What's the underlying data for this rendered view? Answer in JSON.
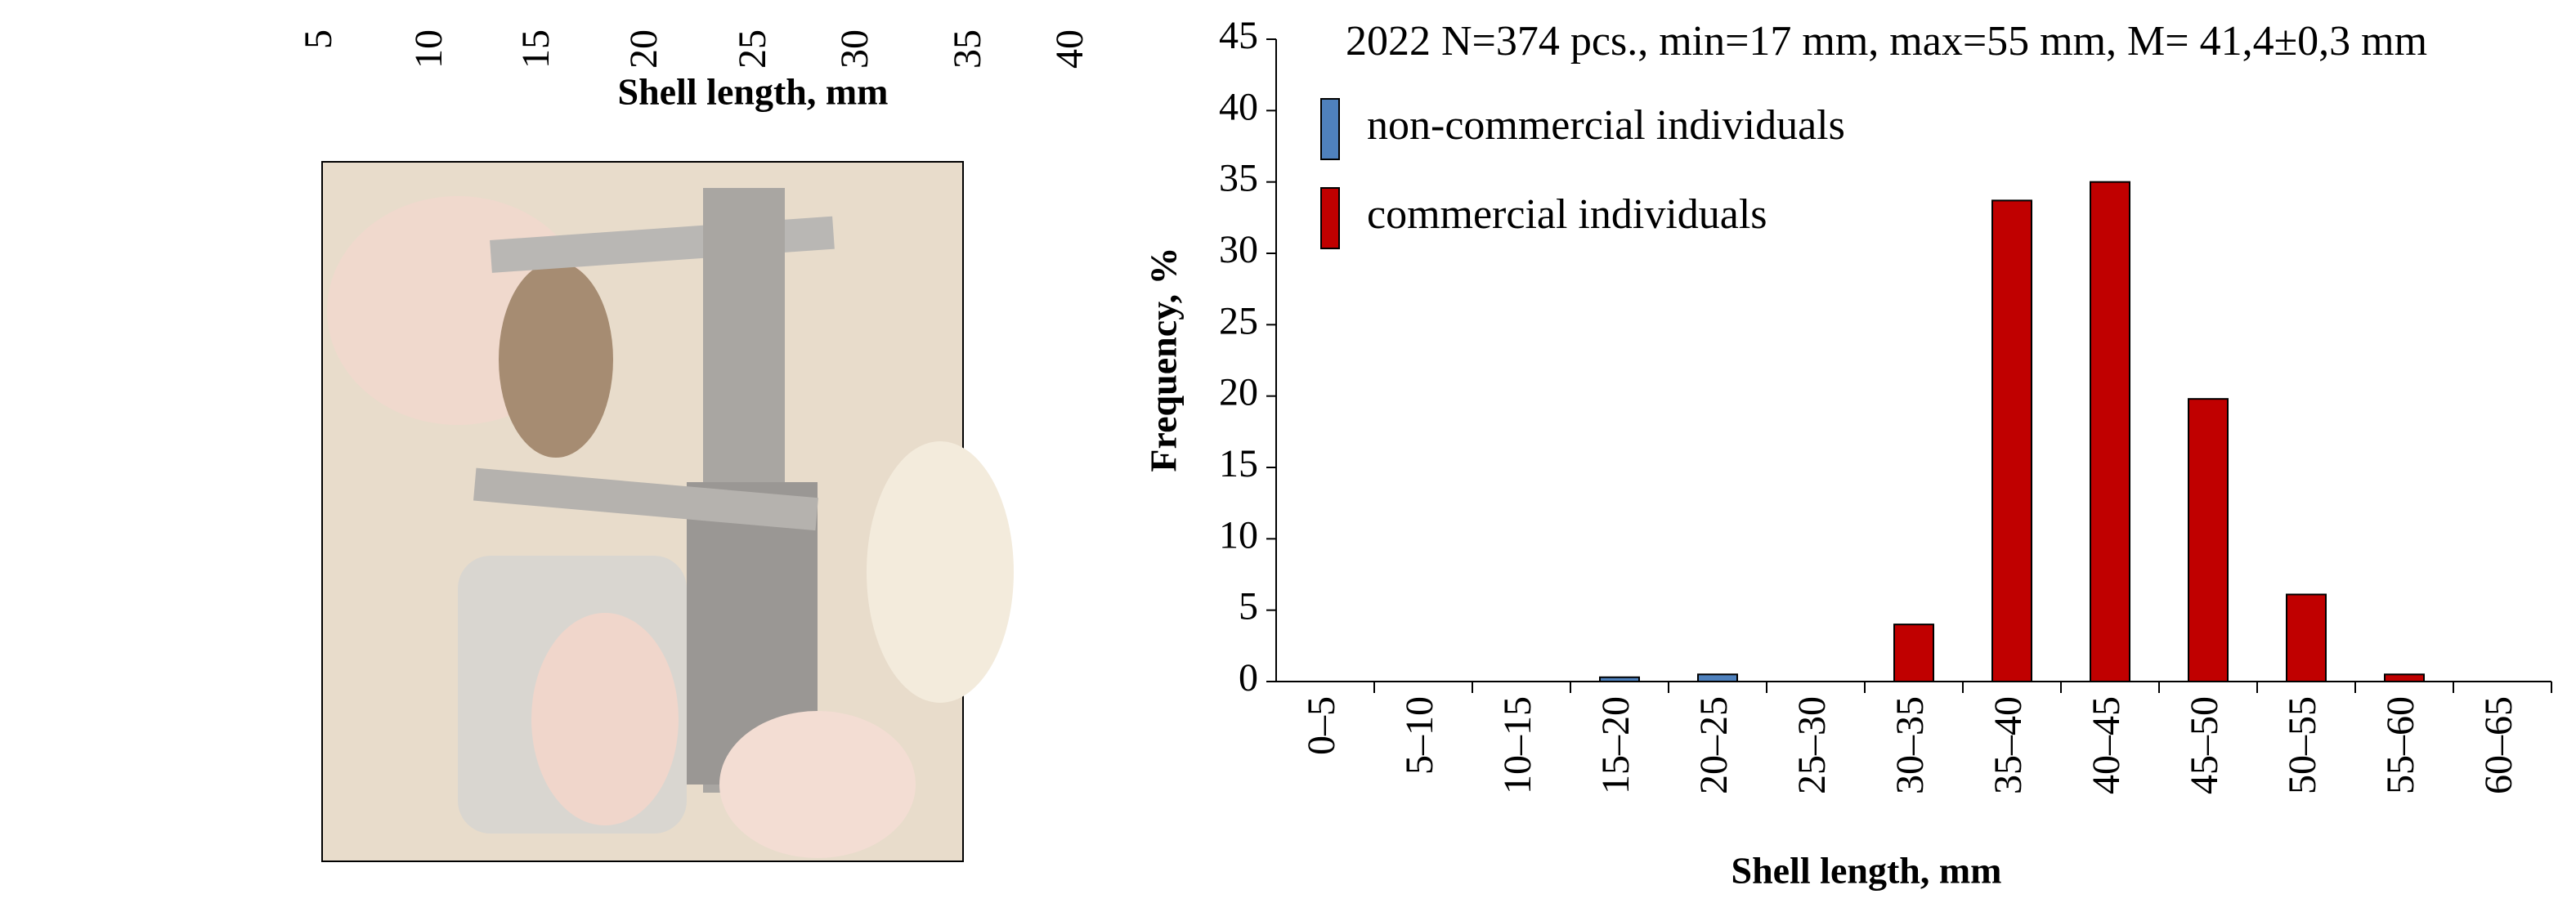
{
  "chart_data": [
    {
      "type": "bar",
      "xlabel": "Shell length, mm",
      "categories": [
        "5",
        "10",
        "15",
        "20",
        "25",
        "30",
        "35",
        "40"
      ]
    },
    {
      "type": "bar",
      "stacked": true,
      "title": "2022 N=374 pcs., min=17 mm, max=55 mm, M= 41,4±0,3 mm",
      "xlabel": "Shell length, mm",
      "ylabel": "Frequency, %",
      "categories": [
        "0–5",
        "5–10",
        "10–15",
        "15–20",
        "20–25",
        "25–30",
        "30–35",
        "35–40",
        "40–45",
        "45–50",
        "50–55",
        "55–60",
        "60–65"
      ],
      "series": [
        {
          "name": "non-commercial individuals",
          "color": "#4f81bd",
          "values": [
            0,
            0,
            0,
            0.3,
            0.5,
            0,
            0,
            0,
            0,
            0,
            0,
            0,
            0
          ]
        },
        {
          "name": "commercial individuals",
          "color": "#c00000",
          "values": [
            0,
            0,
            0,
            0,
            0,
            0,
            4.0,
            33.7,
            35.0,
            19.8,
            6.1,
            0.5,
            0
          ]
        }
      ],
      "ylim": [
        0,
        45
      ],
      "yticks": [
        0,
        5,
        10,
        15,
        20,
        25,
        30,
        35,
        40,
        45
      ],
      "grid": false,
      "legend": "upper left"
    }
  ]
}
